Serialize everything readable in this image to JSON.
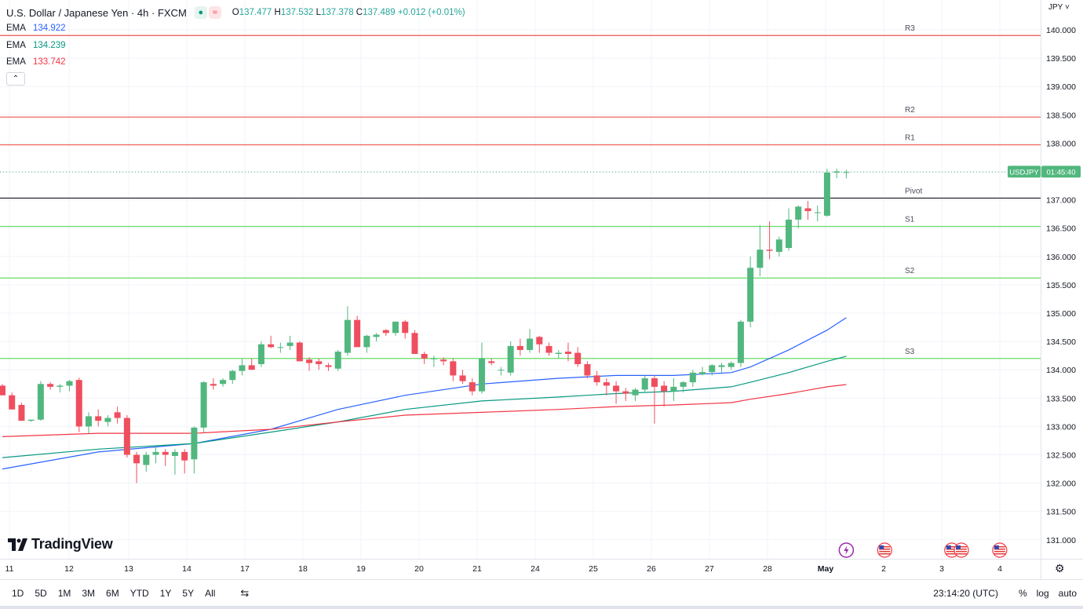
{
  "header": {
    "symbol": "U.S. Dollar / Japanese Yen · 4h · FXCM",
    "open": "137.477",
    "high": "137.532",
    "low": "137.378",
    "close": "137.489",
    "change": "+0.012 (+0.01%)"
  },
  "emas": [
    {
      "label": "EMA",
      "value": "134.922",
      "color": "#2962ff"
    },
    {
      "label": "EMA",
      "value": "134.239",
      "color": "#089981"
    },
    {
      "label": "EMA",
      "value": "133.742",
      "color": "#f23645"
    }
  ],
  "currency": "JPY",
  "price_tag": {
    "symbol": "USDJPY",
    "timer": "01:45:40"
  },
  "logo": "TradingView",
  "timeframes": [
    "1D",
    "5D",
    "1M",
    "3M",
    "6M",
    "YTD",
    "1Y",
    "5Y",
    "All"
  ],
  "clock": "23:14:20 (UTC)",
  "scale_buttons": [
    "%",
    "log",
    "auto"
  ],
  "colors": {
    "up": "#51b77e",
    "down": "#ef4e5e",
    "grid": "#f0f3fa"
  },
  "chart_data": {
    "type": "candlestick",
    "y_ticks": [
      "140.000",
      "139.500",
      "139.000",
      "138.500",
      "138.000",
      "137.500",
      "137.000",
      "136.500",
      "136.000",
      "135.500",
      "135.000",
      "134.500",
      "134.000",
      "133.500",
      "133.000",
      "132.500",
      "132.000",
      "131.500",
      "131.000"
    ],
    "x_ticks": [
      "11",
      "12",
      "13",
      "14",
      "17",
      "18",
      "19",
      "20",
      "21",
      "24",
      "25",
      "26",
      "27",
      "28",
      "May",
      "2",
      "3",
      "4"
    ],
    "levels": [
      {
        "name": "R3",
        "value": 139.9,
        "color": "#ef5350"
      },
      {
        "name": "R2",
        "value": 138.46,
        "color": "#ef5350"
      },
      {
        "name": "R1",
        "value": 137.97,
        "color": "#ef5350"
      },
      {
        "name": "Pivot",
        "value": 137.03,
        "color": "#131722"
      },
      {
        "name": "S1",
        "value": 136.53,
        "color": "#66dd66"
      },
      {
        "name": "S2",
        "value": 135.62,
        "color": "#66dd66"
      },
      {
        "name": "S3",
        "value": 134.2,
        "color": "#66dd66"
      }
    ],
    "last_price": 137.489,
    "candles": [
      [
        133.72,
        133.75,
        133.55,
        133.55
      ],
      [
        133.55,
        133.6,
        133.3,
        133.3
      ],
      [
        133.38,
        133.42,
        133.1,
        133.1
      ],
      [
        133.1,
        133.12,
        133.08,
        133.12
      ],
      [
        133.12,
        133.8,
        133.1,
        133.75
      ],
      [
        133.75,
        133.78,
        133.65,
        133.7
      ],
      [
        133.7,
        133.75,
        133.6,
        133.72
      ],
      [
        133.72,
        133.82,
        133.62,
        133.8
      ],
      [
        133.82,
        133.86,
        132.9,
        133.0
      ],
      [
        133.0,
        133.25,
        132.88,
        133.18
      ],
      [
        133.18,
        133.3,
        133.0,
        133.1
      ],
      [
        133.08,
        133.2,
        133.0,
        133.15
      ],
      [
        133.25,
        133.35,
        133.05,
        133.15
      ],
      [
        133.15,
        133.2,
        132.45,
        132.5
      ],
      [
        132.5,
        132.55,
        132.0,
        132.35
      ],
      [
        132.32,
        132.55,
        132.2,
        132.5
      ],
      [
        132.5,
        132.65,
        132.35,
        132.55
      ],
      [
        132.55,
        132.6,
        132.3,
        132.5
      ],
      [
        132.48,
        132.6,
        132.15,
        132.55
      ],
      [
        132.55,
        132.6,
        132.17,
        132.4
      ],
      [
        132.42,
        133.0,
        132.17,
        132.98
      ],
      [
        132.98,
        133.8,
        132.9,
        133.78
      ],
      [
        133.75,
        133.85,
        133.65,
        133.72
      ],
      [
        133.75,
        133.85,
        133.7,
        133.82
      ],
      [
        133.82,
        134.0,
        133.75,
        133.98
      ],
      [
        133.98,
        134.2,
        133.9,
        134.08
      ],
      [
        134.08,
        134.2,
        134.0,
        134.0
      ],
      [
        134.1,
        134.5,
        134.05,
        134.45
      ],
      [
        134.45,
        134.6,
        134.38,
        134.4
      ],
      [
        134.4,
        134.48,
        134.3,
        134.4
      ],
      [
        134.42,
        134.6,
        134.35,
        134.48
      ],
      [
        134.48,
        134.5,
        134.15,
        134.15
      ],
      [
        134.18,
        134.22,
        133.98,
        134.12
      ],
      [
        134.15,
        134.2,
        134.0,
        134.1
      ],
      [
        134.08,
        134.12,
        133.98,
        134.05
      ],
      [
        134.02,
        134.35,
        133.98,
        134.32
      ],
      [
        134.3,
        135.12,
        134.25,
        134.88
      ],
      [
        134.88,
        134.95,
        134.45,
        134.4
      ],
      [
        134.4,
        134.62,
        134.3,
        134.6
      ],
      [
        134.58,
        134.65,
        134.5,
        134.62
      ],
      [
        134.7,
        134.72,
        134.6,
        134.65
      ],
      [
        134.65,
        134.85,
        134.6,
        134.85
      ],
      [
        134.85,
        134.88,
        134.55,
        134.65
      ],
      [
        134.65,
        134.7,
        134.3,
        134.28
      ],
      [
        134.28,
        134.32,
        134.1,
        134.2
      ],
      [
        134.2,
        134.25,
        134.05,
        134.2
      ],
      [
        134.18,
        134.22,
        134.08,
        134.15
      ],
      [
        134.15,
        134.2,
        133.8,
        133.9
      ],
      [
        133.9,
        134.0,
        133.75,
        133.8
      ],
      [
        133.78,
        133.85,
        133.55,
        133.62
      ],
      [
        133.62,
        134.48,
        133.58,
        134.2
      ],
      [
        134.15,
        134.2,
        134.08,
        134.12
      ],
      [
        134.0,
        134.05,
        133.9,
        134.0
      ],
      [
        133.95,
        134.5,
        133.9,
        134.42
      ],
      [
        134.42,
        134.55,
        134.25,
        134.35
      ],
      [
        134.35,
        134.72,
        134.3,
        134.55
      ],
      [
        134.58,
        134.6,
        134.3,
        134.45
      ],
      [
        134.42,
        134.48,
        134.25,
        134.3
      ],
      [
        134.28,
        134.35,
        134.2,
        134.3
      ],
      [
        134.32,
        134.48,
        134.15,
        134.28
      ],
      [
        134.3,
        134.4,
        134.05,
        134.1
      ],
      [
        134.1,
        134.15,
        133.85,
        133.9
      ],
      [
        133.9,
        133.98,
        133.72,
        133.78
      ],
      [
        133.78,
        133.85,
        133.55,
        133.72
      ],
      [
        133.72,
        133.8,
        133.4,
        133.62
      ],
      [
        133.62,
        133.68,
        133.45,
        133.58
      ],
      [
        133.55,
        133.68,
        133.45,
        133.65
      ],
      [
        133.65,
        133.9,
        133.6,
        133.85
      ],
      [
        133.85,
        133.9,
        133.05,
        133.7
      ],
      [
        133.72,
        133.8,
        133.35,
        133.62
      ],
      [
        133.62,
        133.85,
        133.45,
        133.7
      ],
      [
        133.7,
        133.8,
        133.6,
        133.78
      ],
      [
        133.78,
        134.0,
        133.7,
        133.95
      ],
      [
        133.92,
        134.05,
        133.9,
        133.96
      ],
      [
        133.96,
        134.1,
        133.9,
        134.08
      ],
      [
        134.05,
        134.12,
        133.95,
        134.08
      ],
      [
        134.05,
        134.15,
        134.0,
        134.12
      ],
      [
        134.12,
        134.88,
        134.05,
        134.85
      ],
      [
        134.85,
        136.0,
        134.75,
        135.8
      ],
      [
        135.8,
        136.55,
        135.65,
        136.12
      ],
      [
        136.12,
        136.62,
        135.95,
        136.1
      ],
      [
        136.08,
        136.35,
        136.0,
        136.3
      ],
      [
        136.15,
        136.85,
        136.1,
        136.65
      ],
      [
        136.65,
        136.9,
        136.5,
        136.88
      ],
      [
        136.85,
        136.98,
        136.65,
        136.8
      ],
      [
        136.78,
        136.9,
        136.62,
        136.78
      ],
      [
        136.72,
        137.55,
        136.7,
        137.48
      ],
      [
        137.48,
        137.55,
        137.38,
        137.5
      ],
      [
        137.477,
        137.532,
        137.378,
        137.489
      ]
    ],
    "ema_series": [
      {
        "name": "EMA",
        "color": "#2962ff",
        "points": [
          [
            0,
            132.25
          ],
          [
            10,
            132.55
          ],
          [
            20,
            132.7
          ],
          [
            28,
            132.95
          ],
          [
            35,
            133.3
          ],
          [
            42,
            133.55
          ],
          [
            50,
            133.75
          ],
          [
            58,
            133.85
          ],
          [
            64,
            133.9
          ],
          [
            70,
            133.9
          ],
          [
            76,
            133.95
          ],
          [
            78,
            134.05
          ],
          [
            82,
            134.35
          ],
          [
            86,
            134.7
          ],
          [
            88,
            134.92
          ]
        ]
      },
      {
        "name": "EMA",
        "color": "#089981",
        "points": [
          [
            0,
            132.45
          ],
          [
            10,
            132.6
          ],
          [
            20,
            132.7
          ],
          [
            28,
            132.9
          ],
          [
            35,
            133.08
          ],
          [
            42,
            133.3
          ],
          [
            50,
            133.45
          ],
          [
            58,
            133.52
          ],
          [
            64,
            133.58
          ],
          [
            70,
            133.62
          ],
          [
            76,
            133.7
          ],
          [
            78,
            133.78
          ],
          [
            82,
            133.95
          ],
          [
            86,
            134.15
          ],
          [
            88,
            134.24
          ]
        ]
      },
      {
        "name": "EMA",
        "color": "#f23645",
        "points": [
          [
            0,
            132.82
          ],
          [
            10,
            132.88
          ],
          [
            20,
            132.88
          ],
          [
            28,
            132.95
          ],
          [
            35,
            133.08
          ],
          [
            42,
            133.2
          ],
          [
            50,
            133.25
          ],
          [
            58,
            133.3
          ],
          [
            64,
            133.35
          ],
          [
            70,
            133.38
          ],
          [
            76,
            133.42
          ],
          [
            78,
            133.48
          ],
          [
            82,
            133.58
          ],
          [
            86,
            133.7
          ],
          [
            88,
            133.74
          ]
        ]
      }
    ],
    "event_markers": [
      {
        "type": "earnings-bolt",
        "slot": 88
      },
      {
        "type": "us-flag",
        "slot": 92
      },
      {
        "type": "us-flag",
        "slot": 99
      },
      {
        "type": "us-flag",
        "slot": 100
      },
      {
        "type": "us-flag",
        "slot": 104
      }
    ]
  }
}
